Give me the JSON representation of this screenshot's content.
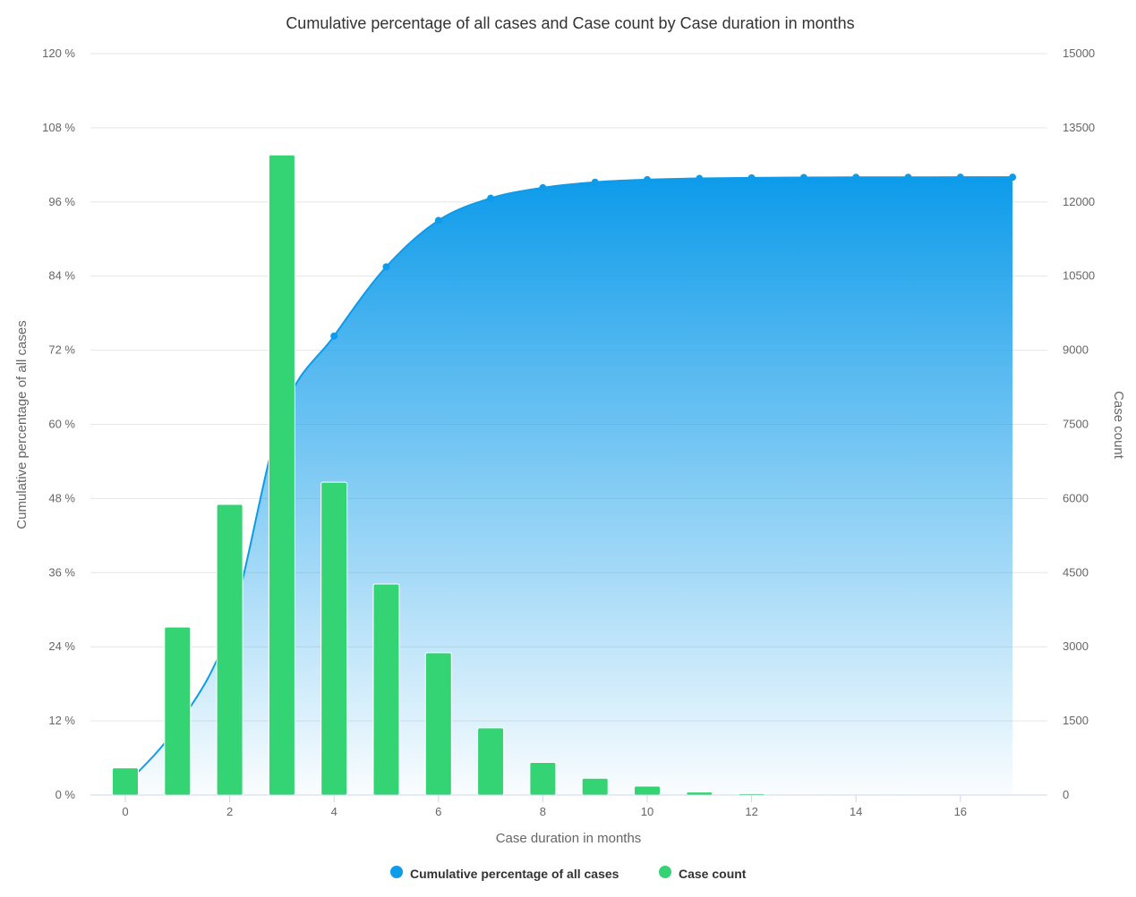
{
  "chart_data": {
    "type": "bar+area",
    "title": "Cumulative percentage of all cases and Case count by Case duration in months",
    "xlabel": "Case duration in months",
    "ylabel_left": "Cumulative percentage of all cases",
    "ylabel_right": "Case count",
    "x": [
      0,
      1,
      2,
      3,
      4,
      5,
      6,
      7,
      8,
      9,
      10,
      11,
      12,
      13,
      14,
      15,
      16,
      17
    ],
    "x_ticks": [
      "0",
      "2",
      "4",
      "6",
      "8",
      "10",
      "12",
      "14",
      "16"
    ],
    "ylim_left": [
      0,
      120
    ],
    "ylim_right": [
      0,
      15000
    ],
    "y_ticks_left": [
      "0 %",
      "12 %",
      "24 %",
      "36 %",
      "48 %",
      "60 %",
      "72 %",
      "84 %",
      "96 %",
      "108 %",
      "120 %"
    ],
    "y_ticks_right": [
      "0",
      "1500",
      "3000",
      "4500",
      "6000",
      "7500",
      "9000",
      "10500",
      "12000",
      "13500",
      "15000"
    ],
    "grid": true,
    "legend_position": "bottom-center",
    "series": [
      {
        "name": "Cumulative percentage of all cases",
        "kind": "area",
        "axis": "left",
        "color": "#0d9bea",
        "values": [
          1.6,
          11.2,
          27.2,
          61.5,
          74.3,
          85.5,
          93.0,
          96.6,
          98.3,
          99.2,
          99.6,
          99.8,
          99.9,
          99.95,
          99.98,
          99.99,
          100.0,
          100.0
        ]
      },
      {
        "name": "Case count",
        "kind": "bar",
        "axis": "right",
        "color": "#34d373",
        "values": [
          550,
          3400,
          5880,
          12950,
          6330,
          4270,
          2880,
          1360,
          660,
          340,
          180,
          60,
          30,
          15,
          8,
          5,
          3,
          2
        ]
      }
    ]
  }
}
